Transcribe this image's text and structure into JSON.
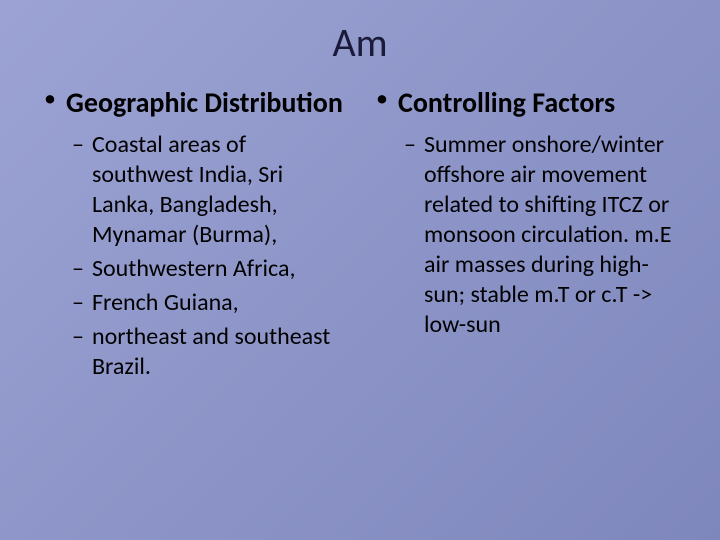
{
  "slide": {
    "title": "Am",
    "background": {
      "gradient_start": "#9ca3d4",
      "gradient_mid": "#8d95c8",
      "gradient_end": "#7e87bc"
    },
    "title_fontsize": 40,
    "heading_fontsize": 28,
    "body_fontsize": 24,
    "left": {
      "heading": "Geographic Distribution",
      "items": [
        "Coastal areas of southwest India,  Sri Lanka, Bangladesh, Mynamar (Burma),",
        "Southwestern Africa,",
        "French Guiana,",
        "northeast and southeast Brazil."
      ]
    },
    "right": {
      "heading": "Controlling Factors",
      "items": [
        "Summer onshore/winter offshore air movement related to shifting ITCZ or monsoon circulation. m.E air masses during high-sun; stable m.T or c.T -> low-sun"
      ]
    }
  }
}
